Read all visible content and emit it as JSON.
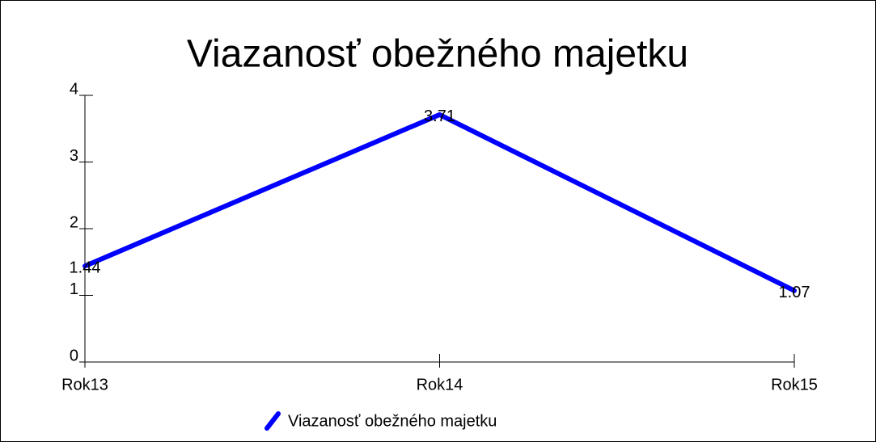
{
  "chart_data": {
    "type": "line",
    "title": "Viazanosť obežného majetku",
    "categories": [
      "Rok13",
      "Rok14",
      "Rok15"
    ],
    "series": [
      {
        "name": "Viazanosť obežného majetku",
        "color": "#0000ff",
        "values": [
          1.44,
          3.71,
          1.07
        ]
      }
    ],
    "ylim": [
      0,
      4
    ],
    "yticks": [
      0,
      1,
      2,
      3,
      4
    ],
    "legend": "bottom"
  }
}
